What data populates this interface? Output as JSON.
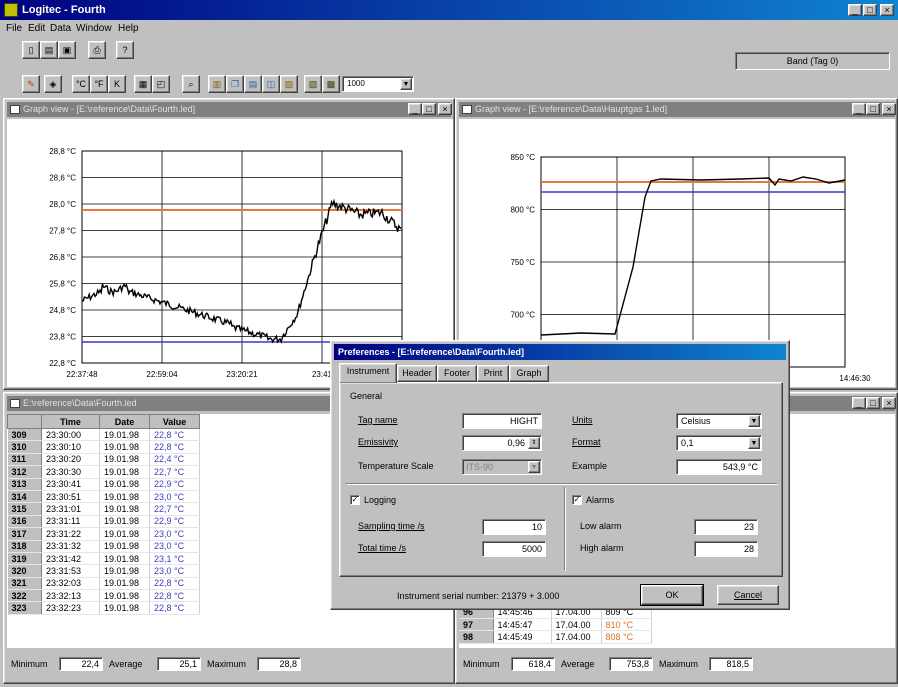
{
  "app": {
    "title": "Logitec - Fourth"
  },
  "menu": [
    "File",
    "Edit",
    "Data",
    "Window",
    "Help"
  ],
  "toolbar": {
    "status_text": "Band (Tag 0)",
    "rate_select": "1000"
  },
  "graph_left": {
    "title": "Graph view - [E:\\reference\\Data\\Fourth.led]",
    "y_ticks": [
      "28,8 °C",
      "28,6 °C",
      "28,0 °C",
      "27,8 °C",
      "26,8 °C",
      "25,8 °C",
      "24,8 °C",
      "23,8 °C",
      "22,8 °C"
    ],
    "x_ticks": [
      "22:37:48",
      "22:59:04",
      "23:20:21",
      "23:41"
    ],
    "alarm_high_color": "#e87838",
    "alarm_low_color": "#3838c8"
  },
  "graph_right": {
    "title": "Graph view - [E:\\reference\\Data\\Hauptgas 1.led]",
    "y_ticks": [
      "850 °C",
      "800 °C",
      "750 °C",
      "700 °C",
      "650 °C"
    ],
    "x_ticks": [
      "14:46:30"
    ]
  },
  "table_left": {
    "title": "E:\\reference\\Data\\Fourth.led",
    "headers": [
      "Time",
      "Date",
      "Value"
    ],
    "rows": [
      [
        "309",
        "23:30:00",
        "19.01.98",
        "22,8 °C"
      ],
      [
        "310",
        "23:30:10",
        "19.01.98",
        "22,8 °C"
      ],
      [
        "311",
        "23:30:20",
        "19.01.98",
        "22,4 °C"
      ],
      [
        "312",
        "23:30:30",
        "19.01.98",
        "22,7 °C"
      ],
      [
        "313",
        "23:30:41",
        "19.01.98",
        "22,9 °C"
      ],
      [
        "314",
        "23:30:51",
        "19.01.98",
        "23,0 °C"
      ],
      [
        "315",
        "23:31:01",
        "19.01.98",
        "22,7 °C"
      ],
      [
        "316",
        "23:31:11",
        "19.01.98",
        "22,9 °C"
      ],
      [
        "317",
        "23:31:22",
        "19.01.98",
        "23,0 °C"
      ],
      [
        "318",
        "23:31:32",
        "19.01.98",
        "23,0 °C"
      ],
      [
        "319",
        "23:31:42",
        "19.01.98",
        "23,1 °C"
      ],
      [
        "320",
        "23:31:53",
        "19.01.98",
        "23,0 °C"
      ],
      [
        "321",
        "23:32:03",
        "19.01.98",
        "22,8 °C"
      ],
      [
        "322",
        "23:32:13",
        "19.01.98",
        "22,8 °C"
      ],
      [
        "323",
        "23:32:23",
        "19.01.98",
        "22,8 °C"
      ]
    ],
    "stats": {
      "min_label": "Minimum",
      "min": "22,4",
      "avg_label": "Average",
      "avg": "25,1",
      "max_label": "Maximum",
      "max": "28,8"
    }
  },
  "table_right": {
    "rows": [
      [
        "96",
        "14:45:46",
        "17.04.00",
        "809 °C",
        false
      ],
      [
        "97",
        "14:45:47",
        "17.04.00",
        "810 °C",
        true
      ],
      [
        "98",
        "14:45:49",
        "17.04.00",
        "808 °C",
        true
      ]
    ],
    "stats": {
      "min_label": "Minimum",
      "min": "618,4",
      "avg_label": "Average",
      "avg": "753,8",
      "max_label": "Maximum",
      "max": "818,5"
    }
  },
  "dialog": {
    "title": "Preferences - [E:\\reference\\Data\\Fourth.led]",
    "tabs": [
      "Instrument",
      "Header",
      "Footer",
      "Print",
      "Graph"
    ],
    "active_tab": "Instrument",
    "general_label": "General",
    "tag_name_label": "Tag name",
    "tag_name": "HIGHT",
    "emissivity_label": "Emissivity",
    "emissivity": "0,96",
    "temp_scale_label": "Temperature Scale",
    "temp_scale": "ITS-90",
    "units_label": "Units",
    "units": "Celsius",
    "format_label": "Format",
    "format": "0,1",
    "example_label": "Example",
    "example": "543,9 °C",
    "logging_label": "Logging",
    "sampling_label": "Sampling time /s",
    "sampling": "10",
    "total_label": "Total time /s",
    "total": "5000",
    "alarms_label": "Alarms",
    "low_alarm_label": "Low alarm",
    "low_alarm": "23",
    "high_alarm_label": "High alarm",
    "high_alarm": "28",
    "serial_text": "Instrument serial number: 21379 + 3.000",
    "ok": "OK",
    "cancel": "Cancel"
  }
}
